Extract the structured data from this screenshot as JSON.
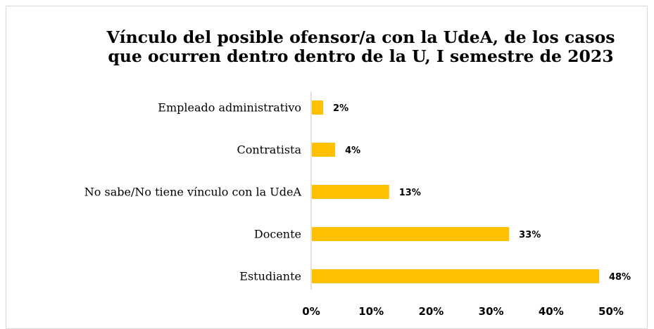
{
  "chart_data": {
    "type": "bar",
    "orientation": "horizontal",
    "title": "Vínculo del posible ofensor/a con la UdeA, de los casos que ocurren dentro dentro de la U, I semestre de 2023",
    "categories": [
      "Empleado administrativo",
      "Contratista",
      "No sabe/No tiene vínculo con la UdeA",
      "Docente",
      "Estudiante"
    ],
    "values": [
      2,
      4,
      13,
      33,
      48
    ],
    "data_labels": [
      "2%",
      "4%",
      "13%",
      "33%",
      "48%"
    ],
    "xlim": [
      0,
      50
    ],
    "x_ticks": [
      0,
      10,
      20,
      30,
      40,
      50
    ],
    "x_tick_labels": [
      "0%",
      "10%",
      "20%",
      "30%",
      "40%",
      "50%"
    ],
    "xlabel": "",
    "ylabel": "",
    "grid": false,
    "legend": "none",
    "colors": {
      "bar": "#FFC000",
      "axis": "#d9d9d9",
      "frame": "#d9d9d9"
    }
  }
}
